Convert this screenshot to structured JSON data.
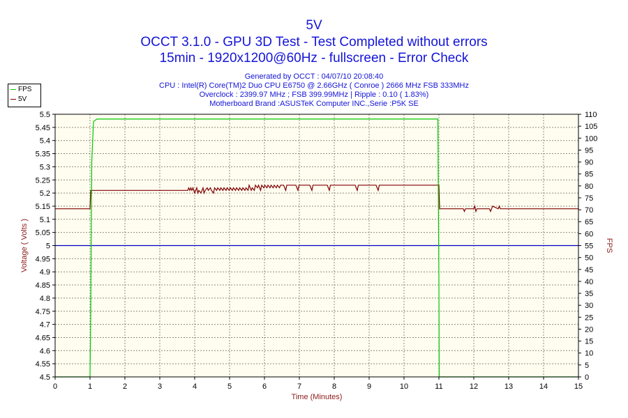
{
  "header": {
    "title": "5V",
    "subtitle1": "OCCT 3.1.0 - GPU 3D Test - Test Completed without errors",
    "subtitle2": "15min - 1920x1200@60Hz - fullscreen - Error Check",
    "info": [
      "Generated by OCCT : 04/07/10 20:08:40",
      "CPU : Intel(R) Core(TM)2 Duo CPU E6750 @ 2.66GHz ( Conroe ) 2666 MHz FSB 333MHz",
      "Overclock : 2399.97 MHz ; FSB 399.99MHz | Ripple : 0.10 ( 1.83%)",
      "Motherboard Brand :ASUSTeK Computer INC.,Serie :P5K SE"
    ]
  },
  "legend": [
    {
      "name": "FPS",
      "color": "#00c800"
    },
    {
      "name": "5V",
      "color": "#800000"
    }
  ],
  "colors": {
    "plot_background": "#fffdf0",
    "grid": "#8c8c78",
    "reference_line": "#0000c8",
    "axis_label": "#8b1a1a"
  },
  "chart_data": {
    "type": "line",
    "xlabel": "Time (Minutes)",
    "ylabel": "Voltage ( Volts )",
    "y2label": "FPS",
    "xlim": [
      0,
      15
    ],
    "ylim": [
      4.5,
      5.5
    ],
    "y2lim": [
      0,
      110
    ],
    "x_ticks": [
      0,
      1,
      2,
      3,
      4,
      5,
      6,
      7,
      8,
      9,
      10,
      11,
      12,
      13,
      14,
      15
    ],
    "y_ticks": [
      4.5,
      4.55,
      4.6,
      4.65,
      4.7,
      4.75,
      4.8,
      4.85,
      4.9,
      4.95,
      5,
      5.05,
      5.1,
      5.15,
      5.2,
      5.25,
      5.3,
      5.35,
      5.4,
      5.45,
      5.5
    ],
    "y_tick_labels": [
      "4.5",
      "4.55",
      "4.6",
      "4.65",
      "4.7",
      "4.75",
      "4.8",
      "4.85",
      "4.9",
      "4.95",
      "5",
      "5.05",
      "5.1",
      "5.15",
      "5.2",
      "5.25",
      "5.3",
      "5.35",
      "5.4",
      "5.45",
      "5.5"
    ],
    "y2_ticks": [
      0,
      5,
      10,
      15,
      20,
      25,
      30,
      35,
      40,
      45,
      50,
      55,
      60,
      65,
      70,
      75,
      80,
      85,
      90,
      95,
      100,
      105,
      110
    ],
    "grid": true,
    "legend_position": "top-left",
    "reference_line": 5.0,
    "series": [
      {
        "name": "5V",
        "axis": "left",
        "x": [
          0,
          1,
          1.02,
          3.8,
          3.83,
          3.86,
          3.89,
          3.92,
          3.95,
          4.0,
          4.03,
          4.06,
          4.09,
          4.12,
          4.18,
          4.21,
          4.24,
          4.27,
          4.3,
          4.36,
          4.39,
          4.45,
          4.48,
          4.54,
          4.57,
          4.63,
          4.66,
          4.72,
          4.75,
          4.81,
          4.84,
          4.9,
          4.93,
          4.99,
          5.02,
          5.08,
          5.11,
          5.17,
          5.2,
          5.26,
          5.29,
          5.35,
          5.38,
          5.44,
          5.47,
          5.53,
          5.56,
          5.62,
          5.65,
          5.71,
          5.74,
          5.8,
          5.83,
          5.89,
          5.92,
          5.98,
          6.01,
          6.07,
          6.1,
          6.16,
          6.19,
          6.25,
          6.28,
          6.34,
          6.37,
          6.43,
          6.46,
          6.55,
          6.58,
          6.61,
          6.64,
          6.9,
          6.93,
          6.96,
          6.99,
          7.3,
          7.33,
          7.36,
          7.39,
          7.8,
          7.83,
          7.86,
          7.89,
          8.6,
          8.63,
          8.66,
          8.69,
          9.2,
          9.23,
          9.26,
          9.29,
          11.0,
          11.02,
          11.7,
          11.73,
          11.76,
          11.79,
          12.0,
          12.03,
          12.06,
          12.09,
          12.45,
          12.48,
          12.51,
          12.54,
          12.7,
          12.73,
          12.76,
          12.79,
          15
        ],
        "values": [
          5.14,
          5.14,
          5.21,
          5.21,
          5.22,
          5.21,
          5.22,
          5.21,
          5.22,
          5.2,
          5.21,
          5.22,
          5.2,
          5.21,
          5.2,
          5.21,
          5.22,
          5.2,
          5.21,
          5.22,
          5.21,
          5.22,
          5.21,
          5.2,
          5.22,
          5.21,
          5.22,
          5.21,
          5.22,
          5.21,
          5.22,
          5.21,
          5.22,
          5.21,
          5.22,
          5.21,
          5.22,
          5.21,
          5.22,
          5.21,
          5.22,
          5.21,
          5.22,
          5.21,
          5.22,
          5.21,
          5.23,
          5.21,
          5.22,
          5.21,
          5.23,
          5.22,
          5.23,
          5.21,
          5.23,
          5.22,
          5.23,
          5.22,
          5.23,
          5.22,
          5.23,
          5.22,
          5.23,
          5.22,
          5.23,
          5.22,
          5.23,
          5.23,
          5.22,
          5.21,
          5.23,
          5.23,
          5.22,
          5.21,
          5.23,
          5.23,
          5.22,
          5.21,
          5.23,
          5.23,
          5.22,
          5.21,
          5.23,
          5.23,
          5.22,
          5.21,
          5.23,
          5.23,
          5.22,
          5.21,
          5.23,
          5.23,
          5.14,
          5.14,
          5.13,
          5.14,
          5.14,
          5.14,
          5.15,
          5.13,
          5.14,
          5.14,
          5.13,
          5.14,
          5.15,
          5.14,
          5.15,
          5.14,
          5.14,
          5.14
        ]
      },
      {
        "name": "FPS",
        "axis": "right",
        "x": [
          0,
          1.0,
          1.02,
          1.05,
          1.1,
          1.2,
          1.5,
          2.0,
          2.5,
          3.0,
          3.5,
          4.0,
          4.5,
          5.0,
          5.5,
          6.0,
          6.5,
          7.0,
          7.5,
          8.0,
          8.5,
          9.0,
          9.5,
          10.0,
          10.5,
          10.97,
          11.0,
          11.01,
          15
        ],
        "values": [
          0,
          0,
          25,
          90,
          107,
          108,
          108,
          108,
          108,
          108,
          108,
          108,
          108,
          108,
          108,
          108,
          108,
          108,
          108,
          108,
          108,
          108,
          108,
          108,
          108,
          108,
          40,
          0,
          0
        ]
      }
    ]
  }
}
